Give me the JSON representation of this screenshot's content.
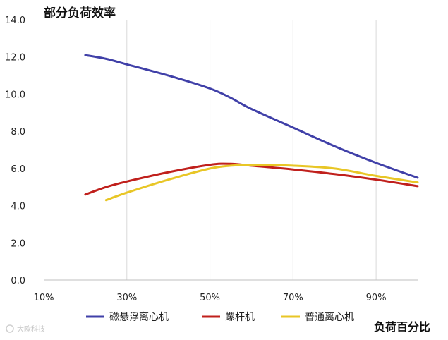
{
  "chart_data": {
    "type": "line",
    "title": "部分负荷效率",
    "xlabel": "负荷百分比",
    "ylabel": "",
    "xlim": [
      10,
      100
    ],
    "ylim": [
      0,
      14
    ],
    "x_ticks": [
      10,
      30,
      50,
      70,
      90
    ],
    "x_tick_labels": [
      "10%",
      "30%",
      "50%",
      "70%",
      "90%"
    ],
    "y_ticks": [
      0,
      2,
      4,
      6,
      8,
      10,
      12,
      14
    ],
    "y_tick_labels": [
      "0.0",
      "2.0",
      "4.0",
      "6.0",
      "8.0",
      "10.0",
      "12.0",
      "14.0"
    ],
    "grid": "vertical",
    "legend_position": "bottom",
    "series": [
      {
        "name": "磁悬浮离心机",
        "color": "#4040a8",
        "points": [
          [
            20,
            12.1
          ],
          [
            25,
            11.9
          ],
          [
            30,
            11.6
          ],
          [
            40,
            11.0
          ],
          [
            50,
            10.3
          ],
          [
            55,
            9.8
          ],
          [
            60,
            9.2
          ],
          [
            70,
            8.2
          ],
          [
            80,
            7.2
          ],
          [
            90,
            6.3
          ],
          [
            100,
            5.5
          ]
        ]
      },
      {
        "name": "螺杆机",
        "color": "#c0201c",
        "points": [
          [
            20,
            4.6
          ],
          [
            25,
            5.0
          ],
          [
            30,
            5.3
          ],
          [
            40,
            5.8
          ],
          [
            50,
            6.2
          ],
          [
            55,
            6.25
          ],
          [
            60,
            6.15
          ],
          [
            70,
            5.95
          ],
          [
            80,
            5.7
          ],
          [
            90,
            5.4
          ],
          [
            100,
            5.05
          ]
        ]
      },
      {
        "name": "普通离心机",
        "color": "#e8c626",
        "points": [
          [
            25,
            4.3
          ],
          [
            30,
            4.7
          ],
          [
            40,
            5.4
          ],
          [
            50,
            6.0
          ],
          [
            55,
            6.15
          ],
          [
            60,
            6.2
          ],
          [
            70,
            6.15
          ],
          [
            80,
            6.0
          ],
          [
            90,
            5.6
          ],
          [
            100,
            5.25
          ]
        ]
      }
    ]
  },
  "watermark": "大欧科技"
}
